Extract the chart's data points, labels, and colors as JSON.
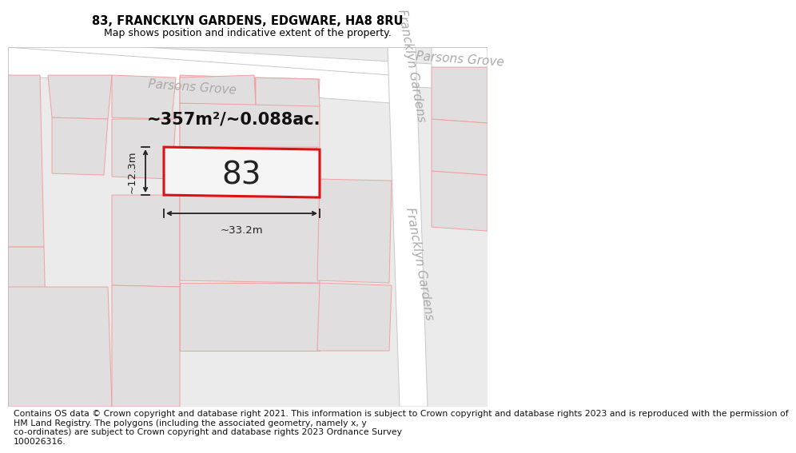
{
  "title_line1": "83, FRANCKLYN GARDENS, EDGWARE, HA8 8RU",
  "title_line2": "Map shows position and indicative extent of the property.",
  "footer_text": "Contains OS data © Crown copyright and database right 2021. This information is subject to Crown copyright and database rights 2023 and is reproduced with the permission of\nHM Land Registry. The polygons (including the associated geometry, namely x, y\nco-ordinates) are subject to Crown copyright and database rights 2023 Ordnance Survey\n100026316.",
  "map_bg": "#ebebeb",
  "road_fill": "#ffffff",
  "road_edge": "#c8c8c8",
  "block_fill": "#e0dede",
  "block_edge": "#f0a0a0",
  "plot83_fill": "#f5f5f5",
  "plot83_edge": "#dd1111",
  "plot83_lw": 2.2,
  "dim_color": "#222222",
  "area_text": "~357m²/~0.088ac.",
  "number_text": "83",
  "dim_width_text": "~33.2m",
  "dim_height_text": "~12.3m",
  "road_text_color": "#aaaaaa",
  "fig_width": 6.0,
  "fig_height": 6.25,
  "title_fs": 10.5,
  "subtitle_fs": 9.0,
  "footer_fs": 7.8,
  "road_label_fs": 11,
  "area_fs": 15,
  "number_fs": 28,
  "dim_fs": 9.5
}
